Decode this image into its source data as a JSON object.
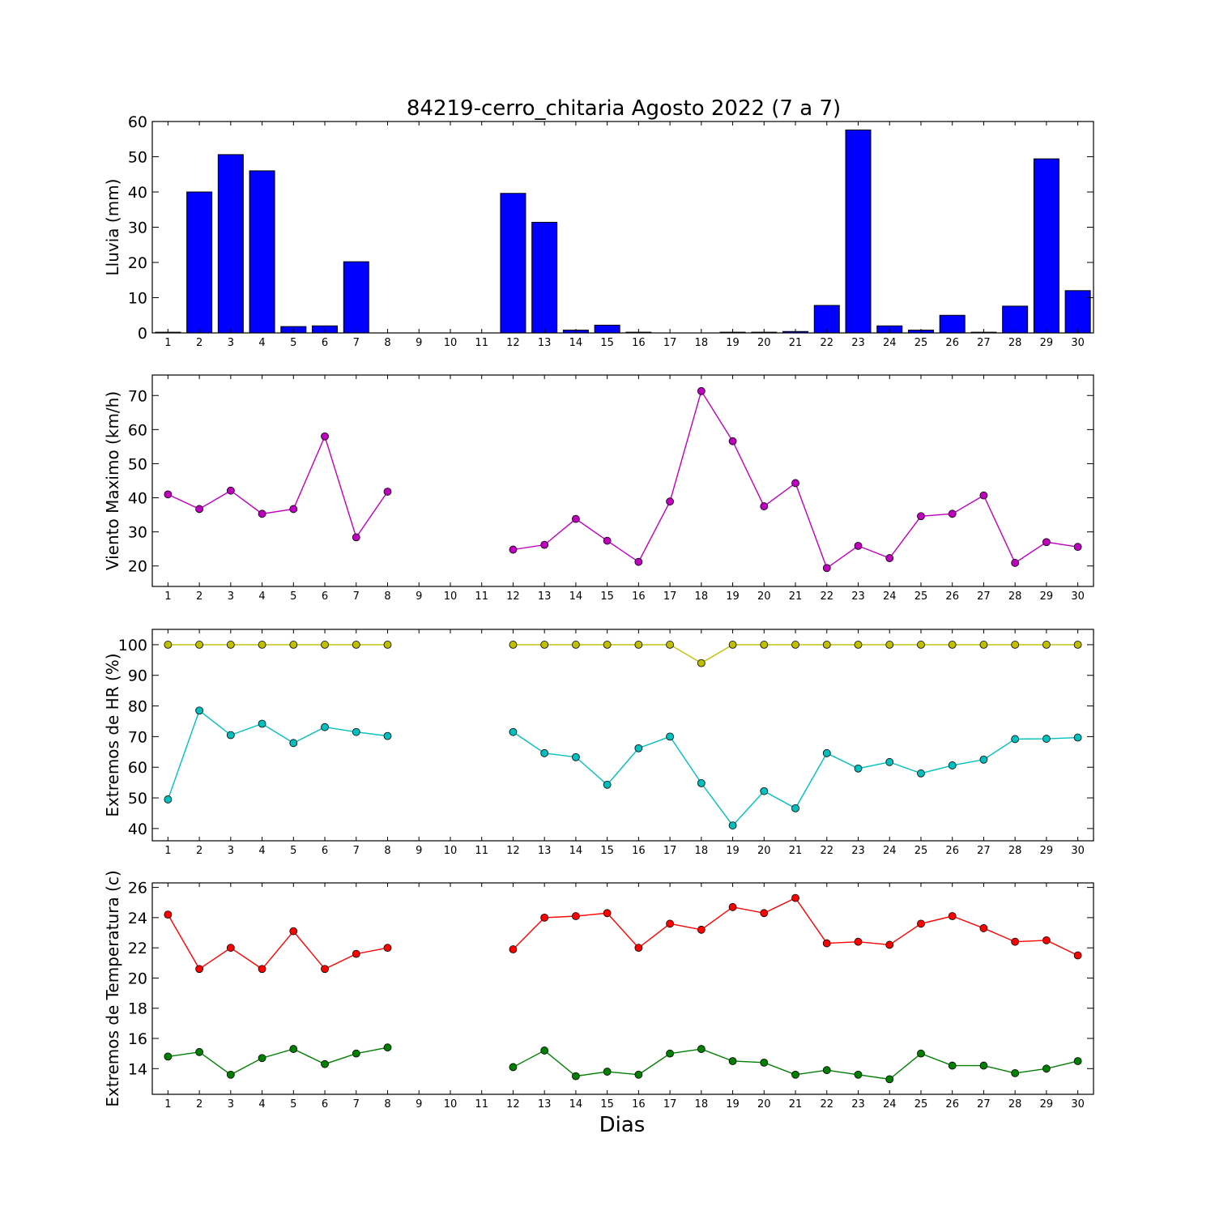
{
  "figure": {
    "title": "84219-cerro_chitaria Agosto 2022  (7 a 7)",
    "xlabel": "Dias"
  },
  "colors": {
    "rain": "#0000ff",
    "wind": "#bf00bf",
    "hr_max": "#bfbf00",
    "hr_min": "#00bfbf",
    "temp_max": "#ff0000",
    "temp_min": "#007f00"
  },
  "chart_data": [
    {
      "type": "bar",
      "ylabel": "Lluvia (mm)",
      "categories": [
        "1",
        "2",
        "3",
        "4",
        "5",
        "6",
        "7",
        "8",
        "9",
        "10",
        "11",
        "12",
        "13",
        "14",
        "15",
        "16",
        "17",
        "18",
        "19",
        "20",
        "21",
        "22",
        "23",
        "24",
        "25",
        "26",
        "27",
        "28",
        "29",
        "30"
      ],
      "values": [
        0.2,
        40,
        50.6,
        46,
        1.8,
        2,
        20.2,
        0,
        0,
        0,
        0,
        39.6,
        31.4,
        0.8,
        2.2,
        0.2,
        0,
        0,
        0.2,
        0.2,
        0.4,
        7.8,
        57.6,
        2,
        0.8,
        5,
        0.2,
        7.6,
        49.4,
        12
      ],
      "ylim": [
        0,
        60
      ],
      "yticks": [
        0,
        10,
        20,
        30,
        40,
        50,
        60
      ]
    },
    {
      "type": "line",
      "ylabel": "Viento Maximo (km/h)",
      "categories": [
        "1",
        "2",
        "3",
        "4",
        "5",
        "6",
        "7",
        "8",
        "9",
        "10",
        "11",
        "12",
        "13",
        "14",
        "15",
        "16",
        "17",
        "18",
        "19",
        "20",
        "21",
        "22",
        "23",
        "24",
        "25",
        "26",
        "27",
        "28",
        "29",
        "30"
      ],
      "series": [
        {
          "values": [
            41,
            36.7,
            42.1,
            35.3,
            36.7,
            58,
            28.4,
            41.8,
            null,
            null,
            null,
            24.8,
            26.2,
            33.8,
            27.4,
            21.2,
            38.9,
            71.3,
            56.6,
            37.5,
            44.3,
            19.4,
            25.9,
            22.3,
            34.6,
            35.3,
            40.7,
            20.9,
            27,
            25.6
          ]
        }
      ],
      "ylim": [
        14,
        76
      ],
      "yticks": [
        20,
        30,
        40,
        50,
        60,
        70
      ]
    },
    {
      "type": "line",
      "ylabel": "Extremos de HR (%)",
      "categories": [
        "1",
        "2",
        "3",
        "4",
        "5",
        "6",
        "7",
        "8",
        "9",
        "10",
        "11",
        "12",
        "13",
        "14",
        "15",
        "16",
        "17",
        "18",
        "19",
        "20",
        "21",
        "22",
        "23",
        "24",
        "25",
        "26",
        "27",
        "28",
        "29",
        "30"
      ],
      "series": [
        {
          "values": [
            100,
            100,
            100,
            100,
            100,
            100,
            100,
            100,
            null,
            null,
            null,
            100,
            100,
            100,
            100,
            100,
            100,
            94,
            100,
            100,
            100,
            100,
            100,
            100,
            100,
            100,
            100,
            100,
            100,
            100
          ]
        },
        {
          "values": [
            49.5,
            78.5,
            70.5,
            74.2,
            67.9,
            73.1,
            71.5,
            70.2,
            null,
            null,
            null,
            71.5,
            64.6,
            63.3,
            54.3,
            66.2,
            70,
            54.8,
            41,
            52.2,
            46.6,
            64.6,
            59.6,
            61.7,
            58,
            60.6,
            62.5,
            69.2,
            69.3,
            69.7
          ]
        }
      ],
      "ylim": [
        36,
        105
      ],
      "yticks": [
        40,
        50,
        60,
        70,
        80,
        90,
        100
      ]
    },
    {
      "type": "line",
      "ylabel": "Extremos de Temperatura (c)",
      "categories": [
        "1",
        "2",
        "3",
        "4",
        "5",
        "6",
        "7",
        "8",
        "9",
        "10",
        "11",
        "12",
        "13",
        "14",
        "15",
        "16",
        "17",
        "18",
        "19",
        "20",
        "21",
        "22",
        "23",
        "24",
        "25",
        "26",
        "27",
        "28",
        "29",
        "30"
      ],
      "series": [
        {
          "values": [
            24.2,
            20.6,
            22,
            20.6,
            23.1,
            20.6,
            21.6,
            22,
            null,
            null,
            null,
            21.9,
            24,
            24.1,
            24.3,
            22,
            23.6,
            23.2,
            24.7,
            24.3,
            25.3,
            22.3,
            22.4,
            22.2,
            23.6,
            24.1,
            23.3,
            22.4,
            22.5,
            21.5
          ]
        },
        {
          "values": [
            14.8,
            15.1,
            13.6,
            14.7,
            15.3,
            14.3,
            15,
            15.4,
            null,
            null,
            null,
            14.1,
            15.2,
            13.5,
            13.8,
            13.6,
            15,
            15.3,
            14.5,
            14.4,
            13.6,
            13.9,
            13.6,
            13.3,
            15,
            14.2,
            14.2,
            13.7,
            14,
            14.5
          ]
        }
      ],
      "ylim": [
        12.3,
        26.3
      ],
      "yticks": [
        14,
        16,
        18,
        20,
        22,
        24,
        26
      ]
    }
  ]
}
